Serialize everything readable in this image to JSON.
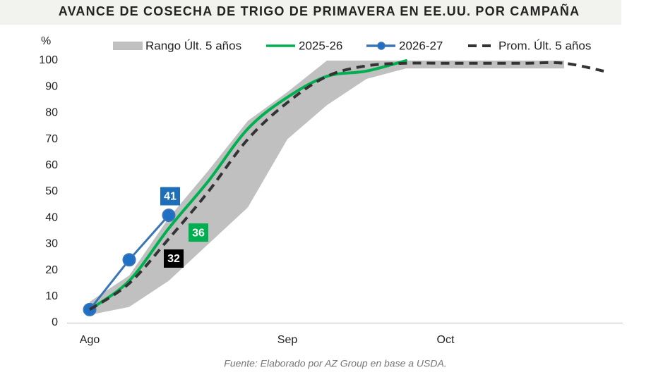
{
  "chart_data": {
    "type": "line",
    "title": "AVANCE DE COSECHA DE TRIGO DE PRIMAVERA EN EE.UU. POR CAMPAÑA",
    "y_label": "%",
    "source": "Fuente: Elaborado por AZ Group en base a USDA.",
    "categories": [
      "Ago",
      null,
      null,
      null,
      null,
      "Sep",
      null,
      null,
      null,
      "Oct",
      null,
      null,
      null,
      null
    ],
    "ylim": [
      0,
      100
    ],
    "yticks": [
      0,
      10,
      20,
      30,
      40,
      50,
      60,
      70,
      80,
      90,
      100
    ],
    "series": [
      {
        "name": "Rango Últ. 5 años",
        "color": "#c0c0c0",
        "type": "range",
        "lower": [
          3,
          6,
          16,
          30,
          44,
          70,
          83,
          93,
          97,
          97,
          97,
          97,
          97,
          null
        ],
        "upper": [
          8,
          18,
          40,
          58,
          77,
          88,
          100,
          100,
          100,
          100,
          100,
          100,
          100,
          null
        ]
      },
      {
        "name": "2025-26",
        "color": "#00b050",
        "values": [
          5,
          16,
          36,
          54,
          74,
          86,
          94,
          96,
          100,
          null,
          null,
          null,
          null,
          null
        ]
      },
      {
        "name": "2026-27",
        "color": "#3a75b8",
        "markers": true,
        "values": [
          5,
          24,
          41,
          null,
          null,
          null,
          null,
          null,
          null,
          null,
          null,
          null,
          null,
          null
        ]
      },
      {
        "name": "Prom. Últ. 5 años",
        "color": "#333333",
        "dashed": true,
        "values": [
          5,
          15,
          32,
          50,
          70,
          84,
          94,
          98,
          99,
          99,
          99,
          99,
          99,
          96
        ]
      }
    ]
  }
}
